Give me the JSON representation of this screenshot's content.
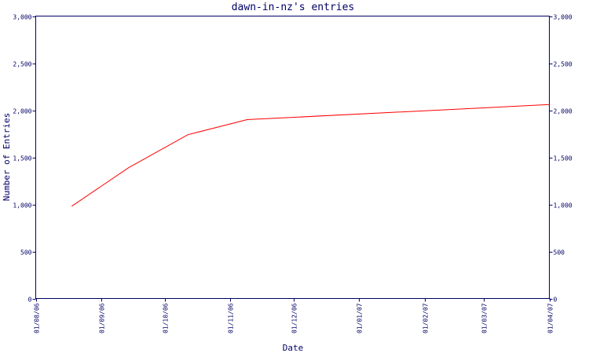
{
  "chart_data": {
    "type": "line",
    "title": "dawn-in-nz's entries",
    "xlabel": "Date",
    "ylabel": "Number of Entries",
    "colors": {
      "axis": "#000066",
      "line": "#ff0000",
      "background": "#ffffff"
    },
    "ylim": [
      0,
      3000
    ],
    "yticks": [
      0,
      500,
      1000,
      1500,
      2000,
      2500,
      3000
    ],
    "ytick_labels": [
      "0",
      "500",
      "1,000",
      "1,500",
      "2,000",
      "2,500",
      "3,000"
    ],
    "xlim": [
      "2006-08-01",
      "2007-04-01"
    ],
    "xticks": [
      "2006-08-01",
      "2006-09-01",
      "2006-10-01",
      "2006-11-01",
      "2006-12-01",
      "2007-01-01",
      "2007-02-01",
      "2007-03-01",
      "2007-04-01"
    ],
    "xtick_labels": [
      "01/08/06",
      "01/09/06",
      "01/10/06",
      "01/11/06",
      "01/12/06",
      "01/01/07",
      "01/02/07",
      "01/03/07",
      "01/04/07"
    ],
    "grid": false,
    "legend": "none",
    "series": [
      {
        "x": [
          "2006-08-18",
          "2006-09-14",
          "2006-10-12",
          "2006-11-09",
          "2007-04-01"
        ],
        "values": [
          980,
          1390,
          1740,
          1900,
          2060
        ]
      }
    ]
  }
}
